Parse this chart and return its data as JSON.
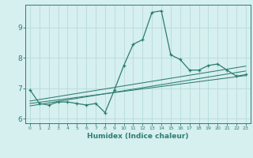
{
  "x": [
    0,
    1,
    2,
    3,
    4,
    5,
    6,
    7,
    8,
    9,
    10,
    11,
    12,
    13,
    14,
    15,
    16,
    17,
    18,
    19,
    20,
    21,
    22,
    23
  ],
  "y_main": [
    6.95,
    6.5,
    6.45,
    6.55,
    6.55,
    6.5,
    6.45,
    6.5,
    6.2,
    6.95,
    7.75,
    8.45,
    8.6,
    9.5,
    9.55,
    8.1,
    7.95,
    7.6,
    7.6,
    7.75,
    7.8,
    7.6,
    7.4,
    7.45
  ],
  "y_trend1": [
    6.5,
    6.54,
    6.58,
    6.62,
    6.66,
    6.7,
    6.74,
    6.78,
    6.82,
    6.86,
    6.9,
    6.94,
    6.98,
    7.02,
    7.06,
    7.1,
    7.14,
    7.18,
    7.22,
    7.26,
    7.3,
    7.34,
    7.38,
    7.42
  ],
  "y_trend2": [
    6.58,
    6.63,
    6.68,
    6.73,
    6.78,
    6.83,
    6.88,
    6.93,
    6.98,
    7.03,
    7.08,
    7.13,
    7.18,
    7.23,
    7.28,
    7.33,
    7.38,
    7.43,
    7.48,
    7.53,
    7.58,
    7.63,
    7.68,
    7.73
  ],
  "y_trend3": [
    6.42,
    6.47,
    6.52,
    6.57,
    6.62,
    6.67,
    6.72,
    6.77,
    6.82,
    6.87,
    6.92,
    6.97,
    7.02,
    7.07,
    7.12,
    7.17,
    7.22,
    7.27,
    7.32,
    7.37,
    7.42,
    7.47,
    7.52,
    7.57
  ],
  "color": "#2d7d70",
  "bg_color": "#d6efef",
  "grid_color": "#b8dada",
  "xlabel": "Humidex (Indice chaleur)",
  "ylim": [
    5.85,
    9.75
  ],
  "xlim": [
    -0.5,
    23.5
  ],
  "yticks": [
    6,
    7,
    8,
    9
  ],
  "xticks": [
    0,
    1,
    2,
    3,
    4,
    5,
    6,
    7,
    8,
    9,
    10,
    11,
    12,
    13,
    14,
    15,
    16,
    17,
    18,
    19,
    20,
    21,
    22,
    23
  ]
}
